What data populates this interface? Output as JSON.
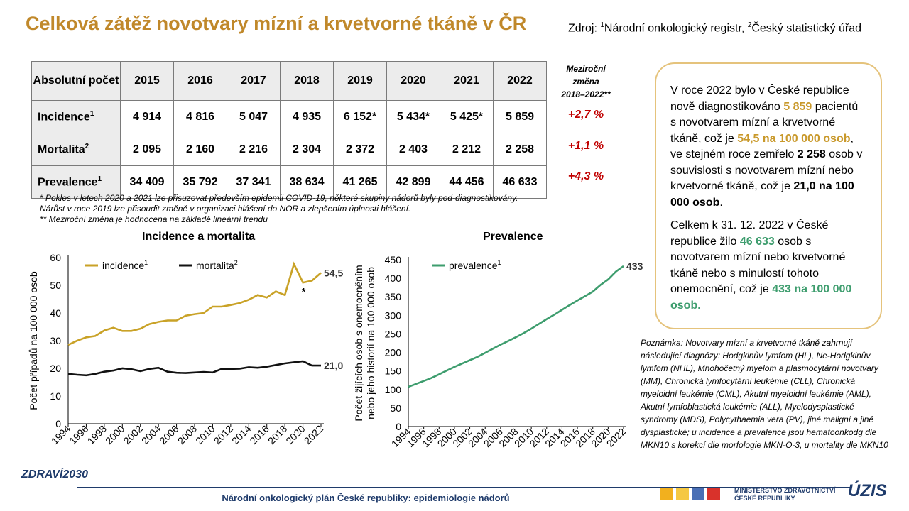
{
  "title": "Celková zátěž novotvary mízní a krvetvorné tkáně v ČR",
  "source": {
    "prefix": "Zdroj: ",
    "sup1": "1",
    "text1": "Národní onkologický registr, ",
    "sup2": "2",
    "text2": "Český statistický úřad"
  },
  "table": {
    "corner_label": "Absolutní počet",
    "years": [
      "2015",
      "2016",
      "2017",
      "2018",
      "2019",
      "2020",
      "2021",
      "2022"
    ],
    "rows": [
      {
        "label": "Incidence",
        "sup": "1",
        "values": [
          "4 914",
          "4 816",
          "5 047",
          "4 935",
          "6 152*",
          "5 434*",
          "5 425*",
          "5 859"
        ],
        "change": "+2,7 %"
      },
      {
        "label": "Mortalita",
        "sup": "2",
        "values": [
          "2 095",
          "2 160",
          "2 216",
          "2 304",
          "2 372",
          "2 403",
          "2 212",
          "2 258"
        ],
        "change": "+1,1 %"
      },
      {
        "label": "Prevalence",
        "sup": "1",
        "values": [
          "34 409",
          "35 792",
          "37 341",
          "38 634",
          "41 265",
          "42 899",
          "44 456",
          "46 633"
        ],
        "change": "+4,3 %"
      }
    ],
    "change_header": [
      "Meziroční",
      "změna",
      "2018–2022**"
    ]
  },
  "notes": [
    "* Pokles v letech 2020 a 2021 lze přisuzovat především epidemii COVID-19, některé skupiny nádorů byly pod-diagnostikovány.",
    "Nárůst v roce 2019 lze přisoudit změně v organizaci hlášení do NOR a zlepšením úplnosti hlášení.",
    "** Meziroční změna je hodnocena na základě lineární trendu"
  ],
  "chart_data": [
    {
      "type": "line",
      "title": "Incidence a mortalita",
      "ylabel": "Počet případů na 100 000 osob",
      "ylim": [
        0,
        60
      ],
      "yticks": [
        0,
        10,
        20,
        30,
        40,
        50,
        60
      ],
      "x": [
        1994,
        1995,
        1996,
        1997,
        1998,
        1999,
        2000,
        2001,
        2002,
        2003,
        2004,
        2005,
        2006,
        2007,
        2008,
        2009,
        2010,
        2011,
        2012,
        2013,
        2014,
        2015,
        2016,
        2017,
        2018,
        2019,
        2020,
        2021,
        2022
      ],
      "xtick_labels": [
        "1994",
        "1996",
        "1998",
        "2000",
        "2002",
        "2004",
        "2006",
        "2008",
        "2010",
        "2012",
        "2014",
        "2016",
        "2018",
        "2020",
        "2022"
      ],
      "series": [
        {
          "name": "incidence",
          "sup": "1",
          "color": "#c9a227",
          "end_label": "54,5",
          "values": [
            28.5,
            30.0,
            31.2,
            31.7,
            33.7,
            34.7,
            33.5,
            33.5,
            34.3,
            36.0,
            36.8,
            37.3,
            37.3,
            39.0,
            39.6,
            40.0,
            42.3,
            42.3,
            42.9,
            43.6,
            44.8,
            46.5,
            45.6,
            47.8,
            46.5,
            57.7,
            51.0,
            51.7,
            54.5
          ]
        },
        {
          "name": "mortalita",
          "sup": "2",
          "color": "#111111",
          "end_label": "21,0",
          "values": [
            18.0,
            17.7,
            17.5,
            18.0,
            18.8,
            19.2,
            20.0,
            19.7,
            19.0,
            19.8,
            20.2,
            18.8,
            18.4,
            18.3,
            18.5,
            18.7,
            18.5,
            19.8,
            19.8,
            19.9,
            20.4,
            20.2,
            20.6,
            21.2,
            21.8,
            22.2,
            22.6,
            21.0,
            21.0
          ]
        }
      ],
      "annotation": "*"
    },
    {
      "type": "line",
      "title": "Prevalence",
      "ylabel": "Počet žijících osob s onemocněním nebo jeho historií na 100 000 osob",
      "ylim": [
        0,
        450
      ],
      "yticks": [
        0,
        50,
        100,
        150,
        200,
        250,
        300,
        350,
        400,
        450
      ],
      "x": [
        1994,
        1995,
        1996,
        1997,
        1998,
        1999,
        2000,
        2001,
        2002,
        2003,
        2004,
        2005,
        2006,
        2007,
        2008,
        2009,
        2010,
        2011,
        2012,
        2013,
        2014,
        2015,
        2016,
        2017,
        2018,
        2019,
        2020,
        2021,
        2022
      ],
      "xtick_labels": [
        "1994",
        "1996",
        "1998",
        "2000",
        "2002",
        "2004",
        "2006",
        "2008",
        "2010",
        "2012",
        "2014",
        "2016",
        "2018",
        "2020",
        "2022"
      ],
      "series": [
        {
          "name": "prevalence",
          "sup": "1",
          "color": "#3e9d6e",
          "end_label": "433",
          "values": [
            107,
            115,
            123,
            131,
            141,
            151,
            161,
            170,
            179,
            188,
            199,
            210,
            221,
            231,
            241,
            252,
            264,
            277,
            290,
            302,
            315,
            328,
            340,
            352,
            364,
            382,
            397,
            418,
            433
          ]
        }
      ]
    }
  ],
  "infobox": {
    "p1": [
      "V roce 2022 bylo v České republice nově diagnostikováno ",
      "5 859",
      " pacientů s novotvarem mízní a krvetvorné tkáně, což je ",
      "54,5 na 100 000 osob",
      ", ve stejném roce zemřelo ",
      "2 258",
      " osob v souvislosti s novotvarem mízní nebo krvetvorné tkáně, což je ",
      "21,0 na 100 000 osob",
      "."
    ],
    "p2": [
      "Celkem k 31. 12. 2022 v České republice žilo ",
      "46 633",
      " osob s novotvarem mízní nebo krvetvorné tkáně nebo s minulostí tohoto onemocnění, což je ",
      "433 na 100 000 osob."
    ]
  },
  "footnote_right": "Poznámka: Novotvary mízní a krvetvorné tkáně zahrnují následující diagnózy: Hodgkinův lymfom (HL), Ne-Hodgkinův lymfom (NHL), Mnohočetný myelom a plasmocytární novotvary (MM), Chronická lymfocytární leukémie (CLL), Chronická myeloidní leukémie (CML), Akutní myeloidní leukémie (AML), Akutní lymfoblastická leukémie (ALL), Myelodysplastické syndromy (MDS), Polycythaemia vera (PV), jiné maligní a jiné dysplastické; u incidence a prevalence jsou hematoonkodg dle MKN10 s korekcí dle morfologie MKN-O-3, u mortality dle MKN10",
  "footer": "Národní onkologický plán České republiky: epidemiologie nádorů",
  "logo_zdravi": "ZDRAVÍ2030",
  "ministry": [
    "MINISTERSTVO ZDRAVOTNICTVÍ",
    "ČESKÉ REPUBLIKY"
  ],
  "logo_uzis": "ÚZIS",
  "colors": {
    "title": "#c0882a",
    "gold": "#c9a227",
    "green": "#3e9d6e",
    "red": "#c00000",
    "navy": "#1f3b6b"
  }
}
